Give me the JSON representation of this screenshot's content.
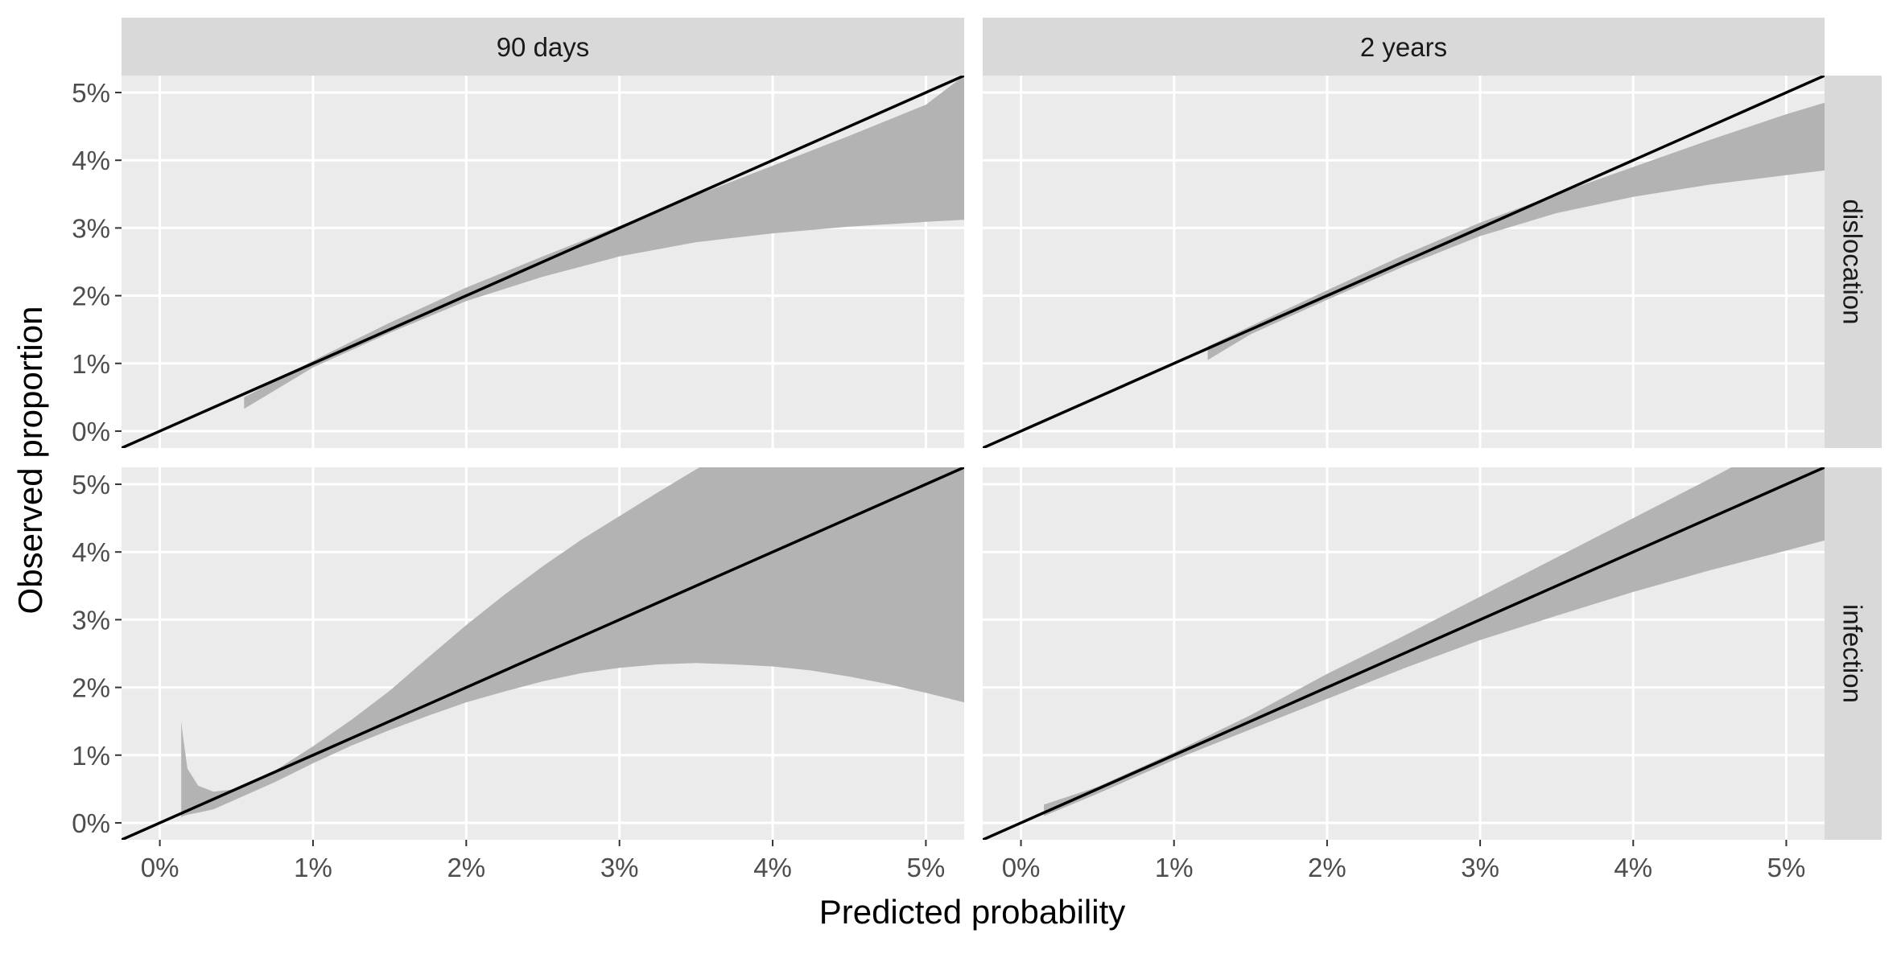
{
  "chart_data": {
    "type": "area",
    "xlabel": "Predicted probability",
    "ylabel": "Observed proportion",
    "column_facets": [
      "90 days",
      "2 years"
    ],
    "row_facets": [
      "dislocation",
      "infection"
    ],
    "xlim": [
      -0.0025,
      0.0525
    ],
    "ylim": [
      -0.0025,
      0.0525
    ],
    "x_ticks": [
      0,
      0.01,
      0.02,
      0.03,
      0.04,
      0.05
    ],
    "y_ticks": [
      0,
      0.01,
      0.02,
      0.03,
      0.04,
      0.05
    ],
    "x_tick_labels": [
      "0%",
      "1%",
      "2%",
      "3%",
      "4%",
      "5%"
    ],
    "y_tick_labels": [
      "0%",
      "1%",
      "2%",
      "3%",
      "4%",
      "5%"
    ],
    "grid": true,
    "reference_line": {
      "slope": 1,
      "intercept": 0
    },
    "colors": {
      "panel_background": "#ebebeb",
      "strip_background": "#d9d9d9",
      "grid": "#ffffff",
      "ribbon": "#b3b3b3",
      "line": "#000000"
    },
    "panels": [
      {
        "column": "90 days",
        "row": "dislocation",
        "ribbon": {
          "x": [
            0.0055,
            0.01,
            0.015,
            0.02,
            0.025,
            0.03,
            0.035,
            0.04,
            0.045,
            0.05,
            0.0525
          ],
          "lower": [
            0.0033,
            0.0094,
            0.0145,
            0.0192,
            0.0228,
            0.0258,
            0.0279,
            0.0292,
            0.0302,
            0.0309,
            0.0312
          ],
          "upper": [
            0.005,
            0.0104,
            0.016,
            0.0212,
            0.0258,
            0.0303,
            0.0348,
            0.0392,
            0.0436,
            0.0482,
            0.0525
          ]
        }
      },
      {
        "column": "2 years",
        "row": "dislocation",
        "ribbon": {
          "x": [
            0.0122,
            0.015,
            0.02,
            0.025,
            0.03,
            0.035,
            0.04,
            0.045,
            0.05,
            0.0525
          ],
          "lower": [
            0.0105,
            0.0143,
            0.0194,
            0.0243,
            0.0288,
            0.0322,
            0.0346,
            0.0364,
            0.0378,
            0.0385
          ],
          "upper": [
            0.0125,
            0.0155,
            0.0208,
            0.026,
            0.0308,
            0.035,
            0.039,
            0.043,
            0.0468,
            0.0485
          ]
        }
      },
      {
        "column": "90 days",
        "row": "infection",
        "ribbon": {
          "x": [
            0.0014,
            0.0015,
            0.0018,
            0.0025,
            0.0035,
            0.005,
            0.0075,
            0.01,
            0.0125,
            0.015,
            0.0175,
            0.02,
            0.0225,
            0.025,
            0.0275,
            0.03,
            0.0325,
            0.035,
            0.0375,
            0.04,
            0.0425,
            0.045,
            0.0475,
            0.05,
            0.0525
          ],
          "lower": [
            0.0008,
            0.001,
            0.0012,
            0.0015,
            0.002,
            0.0035,
            0.006,
            0.0088,
            0.0114,
            0.0137,
            0.0158,
            0.0178,
            0.0194,
            0.0209,
            0.0221,
            0.0229,
            0.0234,
            0.0236,
            0.0234,
            0.0231,
            0.0225,
            0.0216,
            0.0205,
            0.0192,
            0.0178
          ],
          "upper": [
            0.015,
            0.013,
            0.008,
            0.0055,
            0.0046,
            0.005,
            0.0077,
            0.0113,
            0.0152,
            0.0195,
            0.0244,
            0.0292,
            0.0337,
            0.0379,
            0.0418,
            0.0453,
            0.0488,
            0.0522,
            0.0555,
            0.0585,
            0.0615,
            0.0645,
            0.0675,
            0.0705,
            0.0735
          ]
        }
      },
      {
        "column": "2 years",
        "row": "infection",
        "ribbon": {
          "x": [
            0.0015,
            0.005,
            0.01,
            0.015,
            0.02,
            0.025,
            0.03,
            0.035,
            0.04,
            0.045,
            0.05,
            0.0525
          ],
          "lower": [
            0.001,
            0.0043,
            0.0093,
            0.0138,
            0.0183,
            0.0228,
            0.027,
            0.0306,
            0.0341,
            0.0373,
            0.0402,
            0.0417
          ],
          "upper": [
            0.0027,
            0.0053,
            0.0104,
            0.0159,
            0.022,
            0.0276,
            0.0334,
            0.0392,
            0.045,
            0.0508,
            0.0568,
            0.06
          ]
        }
      }
    ]
  }
}
